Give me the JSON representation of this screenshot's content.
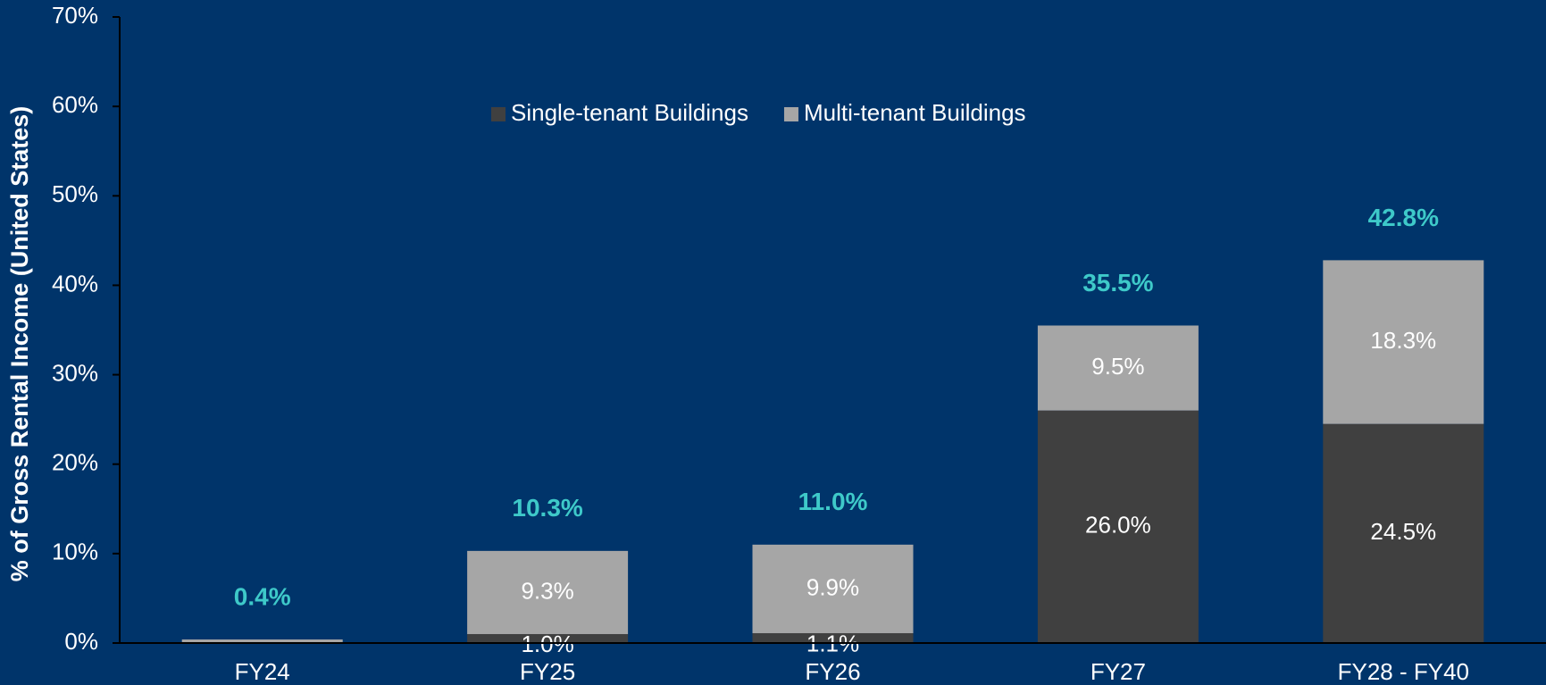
{
  "chart_data": {
    "type": "stacked_bar",
    "y_axis_label": "% of  Gross Rental Income (United States)",
    "categories": [
      "FY24",
      "FY25",
      "FY26",
      "FY27",
      "FY28 - FY40"
    ],
    "series": [
      {
        "name": "Single-tenant Buildings",
        "color": "#404040",
        "values": [
          0,
          1.0,
          1.1,
          26.0,
          24.5
        ],
        "value_labels": [
          null,
          "1.0%",
          "1.1%",
          "26.0%",
          "24.5%"
        ]
      },
      {
        "name": "Multi-tenant Buildings",
        "color": "#a6a6a6",
        "values": [
          0.4,
          9.3,
          9.9,
          9.5,
          18.3
        ],
        "value_labels": [
          null,
          "9.3%",
          "9.9%",
          "9.5%",
          "18.3%"
        ]
      }
    ],
    "totals": [
      0.4,
      10.3,
      11.0,
      35.5,
      42.8
    ],
    "total_labels": [
      "0.4%",
      "10.3%",
      "11.0%",
      "35.5%",
      "42.8%"
    ],
    "total_color": "#3ec9c9",
    "ylim": [
      0,
      70
    ],
    "yticks": [
      {
        "value": 0,
        "label": "0%"
      },
      {
        "value": 10,
        "label": "10%"
      },
      {
        "value": 20,
        "label": "20%"
      },
      {
        "value": 30,
        "label": "30%"
      },
      {
        "value": 40,
        "label": "40%"
      },
      {
        "value": 50,
        "label": "50%"
      },
      {
        "value": 60,
        "label": "60%"
      },
      {
        "value": 70,
        "label": "70%"
      }
    ],
    "grid": false,
    "legend": "top"
  }
}
